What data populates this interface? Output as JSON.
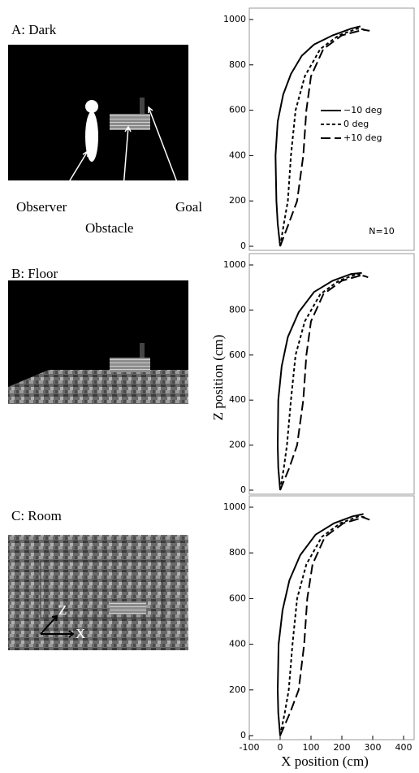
{
  "panels": [
    {
      "label": "A: Dark"
    },
    {
      "label": "B: Floor"
    },
    {
      "label": "C: Room"
    }
  ],
  "annotations": {
    "observer": "Observer",
    "obstacle": "Obstacle",
    "goal": "Goal",
    "z_axis": "Z",
    "x_axis": "X"
  },
  "chart_data": [
    {
      "type": "line",
      "xlim": [
        -100,
        400
      ],
      "ylim": [
        0,
        1000
      ],
      "yticks": [
        0,
        200,
        400,
        600,
        800,
        1000
      ],
      "legend": "upper right",
      "annotation": "N=10",
      "series": [
        {
          "name": "−10 deg",
          "color": "#000000",
          "dash": "solid",
          "x": [
            0,
            -8,
            -12,
            -15,
            -8,
            10,
            35,
            70,
            110,
            170,
            230,
            260
          ],
          "values": [
            0,
            100,
            200,
            400,
            550,
            670,
            760,
            840,
            890,
            930,
            960,
            970
          ]
        },
        {
          "name": "0 deg",
          "color": "#000000",
          "dash": "dotted",
          "x": [
            0,
            12,
            25,
            35,
            50,
            80,
            130,
            190,
            250,
            275
          ],
          "values": [
            0,
            100,
            200,
            400,
            600,
            750,
            870,
            930,
            960,
            955
          ]
        },
        {
          "name": "+10 deg",
          "color": "#000000",
          "dash": "dashed",
          "x": [
            0,
            28,
            55,
            75,
            85,
            100,
            140,
            200,
            270,
            290
          ],
          "values": [
            0,
            100,
            200,
            400,
            600,
            750,
            870,
            930,
            955,
            950
          ]
        }
      ]
    },
    {
      "type": "line",
      "xlim": [
        -100,
        400
      ],
      "ylim": [
        0,
        1000
      ],
      "yticks": [
        0,
        200,
        400,
        600,
        800,
        1000
      ],
      "ylabel": "Z position (cm)",
      "series": [
        {
          "color": "#000000",
          "dash": "solid",
          "x": [
            0,
            -6,
            -8,
            -6,
            5,
            25,
            60,
            110,
            170,
            230,
            265
          ],
          "values": [
            0,
            100,
            200,
            400,
            550,
            680,
            790,
            880,
            930,
            960,
            965
          ]
        },
        {
          "color": "#000000",
          "dash": "dotted",
          "x": [
            0,
            12,
            22,
            35,
            50,
            80,
            130,
            190,
            250,
            275
          ],
          "values": [
            0,
            100,
            200,
            400,
            600,
            750,
            870,
            930,
            960,
            950
          ]
        },
        {
          "color": "#000000",
          "dash": "dashed",
          "x": [
            0,
            30,
            55,
            75,
            85,
            100,
            140,
            200,
            265,
            285
          ],
          "values": [
            0,
            100,
            200,
            400,
            600,
            750,
            870,
            930,
            955,
            945
          ]
        }
      ]
    },
    {
      "type": "line",
      "xlim": [
        -100,
        400
      ],
      "ylim": [
        0,
        1000
      ],
      "yticks": [
        0,
        200,
        400,
        600,
        800,
        1000
      ],
      "xticks": [
        -100,
        0,
        100,
        200,
        300,
        400
      ],
      "xlabel": "X position (cm)",
      "series": [
        {
          "color": "#000000",
          "dash": "solid",
          "x": [
            0,
            -6,
            -8,
            -5,
            8,
            30,
            65,
            115,
            175,
            235,
            270
          ],
          "values": [
            0,
            100,
            200,
            400,
            550,
            680,
            790,
            880,
            930,
            960,
            970
          ]
        },
        {
          "color": "#000000",
          "dash": "dotted",
          "x": [
            0,
            15,
            28,
            40,
            55,
            85,
            135,
            195,
            255,
            280
          ],
          "values": [
            0,
            100,
            200,
            400,
            600,
            750,
            870,
            930,
            960,
            955
          ]
        },
        {
          "color": "#000000",
          "dash": "dashed",
          "x": [
            0,
            32,
            60,
            78,
            88,
            105,
            145,
            205,
            270,
            290
          ],
          "values": [
            0,
            100,
            200,
            400,
            600,
            750,
            870,
            930,
            955,
            945
          ]
        }
      ]
    }
  ]
}
